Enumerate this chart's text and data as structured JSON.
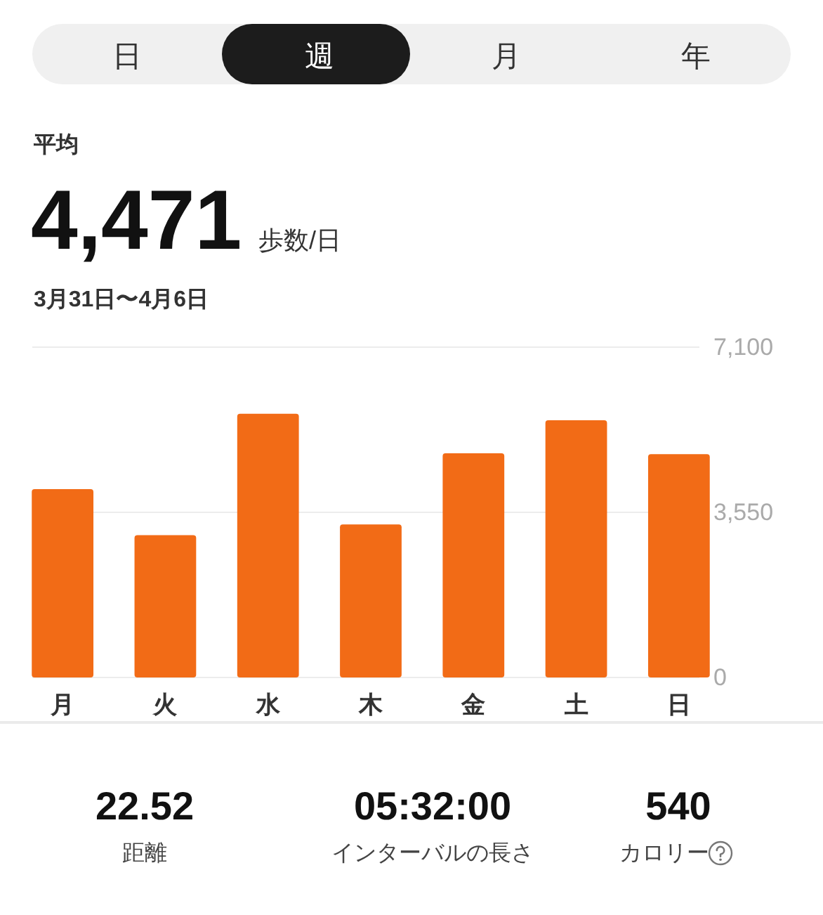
{
  "chart_data": {
    "type": "bar",
    "title": "4,471",
    "subtitle": "3月31日〜4月6日",
    "annotations": [
      "日",
      "週",
      "月",
      "年",
      "平均",
      "歩数/日",
      "22.52",
      "距離",
      "05:32:00",
      "インターバルの長さ",
      "540",
      "カロリー"
    ],
    "categories": [
      "月",
      "火",
      "水",
      "木",
      "金",
      "土",
      "日"
    ],
    "values": [
      4050,
      3060,
      5670,
      3290,
      4820,
      5530,
      4800
    ],
    "color": "#f26b16",
    "ylim": [
      0,
      7100
    ],
    "yticks": [
      0,
      {
        "value": 3550,
        "label": "3,550"
      },
      {
        "value": 7100,
        "label": "7,100"
      }
    ],
    "grid": true
  }
}
